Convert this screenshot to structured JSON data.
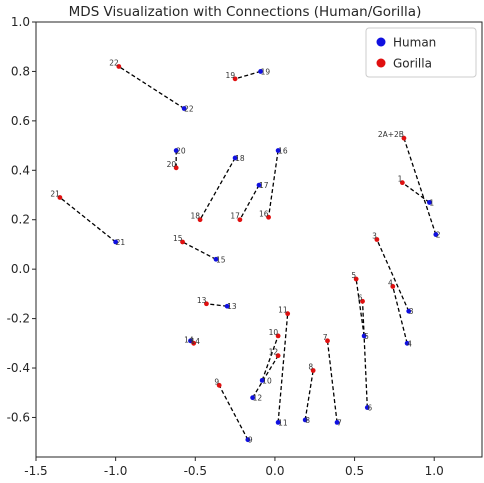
{
  "chart_data": {
    "type": "scatter",
    "title": "MDS Visualization with Connections (Human/Gorilla)",
    "xlabel": "",
    "ylabel": "",
    "xlim": [
      -1.5,
      1.3
    ],
    "ylim": [
      -0.76,
      1.0
    ],
    "xticks": [
      "-1.5",
      "-1.0",
      "-0.5",
      "0.0",
      "0.5",
      "1.0"
    ],
    "yticks": [
      "-0.6",
      "-0.4",
      "-0.2",
      "0.0",
      "0.2",
      "0.4",
      "0.6",
      "0.8",
      "1.0"
    ],
    "grid": false,
    "legend": {
      "placement": "top-right",
      "entries": [
        {
          "name": "Human",
          "color": "#1010e0"
        },
        {
          "name": "Gorilla",
          "color": "#e01010"
        }
      ]
    },
    "connection_style": "black dashed",
    "pairs": [
      {
        "label": "1",
        "human": [
          0.97,
          0.27
        ],
        "gorilla": [
          0.8,
          0.35
        ]
      },
      {
        "label": "2",
        "human": [
          1.01,
          0.14
        ],
        "gorilla": [
          0.81,
          0.53
        ],
        "gorilla_label": "2A+2B"
      },
      {
        "label": "3",
        "human": [
          0.84,
          -0.17
        ],
        "gorilla": [
          0.64,
          0.12
        ]
      },
      {
        "label": "4",
        "human": [
          0.83,
          -0.3
        ],
        "gorilla": [
          0.74,
          -0.07
        ]
      },
      {
        "label": "5",
        "human": [
          0.56,
          -0.27
        ],
        "gorilla": [
          0.51,
          -0.04
        ]
      },
      {
        "label": "6",
        "human": [
          0.58,
          -0.56
        ],
        "gorilla": [
          0.55,
          -0.13
        ]
      },
      {
        "label": "7",
        "human": [
          0.39,
          -0.62
        ],
        "gorilla": [
          0.33,
          -0.29
        ]
      },
      {
        "label": "8",
        "human": [
          0.19,
          -0.61
        ],
        "gorilla": [
          0.24,
          -0.41
        ]
      },
      {
        "label": "9",
        "human": [
          -0.17,
          -0.69
        ],
        "gorilla": [
          -0.35,
          -0.47
        ]
      },
      {
        "label": "10",
        "human": [
          -0.08,
          -0.45
        ],
        "gorilla": [
          0.02,
          -0.27
        ]
      },
      {
        "label": "11",
        "human": [
          0.02,
          -0.62
        ],
        "gorilla": [
          0.08,
          -0.18
        ]
      },
      {
        "label": "12",
        "human": [
          -0.14,
          -0.52
        ],
        "gorilla": [
          0.02,
          -0.35
        ]
      },
      {
        "label": "13",
        "human": [
          -0.3,
          -0.15
        ],
        "gorilla": [
          -0.43,
          -0.14
        ]
      },
      {
        "label": "14",
        "human": [
          -0.53,
          -0.29
        ],
        "gorilla": [
          -0.51,
          -0.3
        ]
      },
      {
        "label": "15",
        "human": [
          -0.37,
          0.04
        ],
        "gorilla": [
          -0.58,
          0.11
        ]
      },
      {
        "label": "16",
        "human": [
          0.02,
          0.48
        ],
        "gorilla": [
          -0.04,
          0.21
        ]
      },
      {
        "label": "17",
        "human": [
          -0.1,
          0.34
        ],
        "gorilla": [
          -0.22,
          0.2
        ]
      },
      {
        "label": "18",
        "human": [
          -0.25,
          0.45
        ],
        "gorilla": [
          -0.47,
          0.2
        ]
      },
      {
        "label": "19",
        "human": [
          -0.09,
          0.8
        ],
        "gorilla": [
          -0.25,
          0.77
        ]
      },
      {
        "label": "20",
        "human": [
          -0.62,
          0.48
        ],
        "gorilla": [
          -0.62,
          0.41
        ]
      },
      {
        "label": "21",
        "human": [
          -1.0,
          0.11
        ],
        "gorilla": [
          -1.35,
          0.29
        ]
      },
      {
        "label": "22",
        "human": [
          -0.57,
          0.65
        ],
        "gorilla": [
          -0.98,
          0.82
        ]
      }
    ]
  }
}
